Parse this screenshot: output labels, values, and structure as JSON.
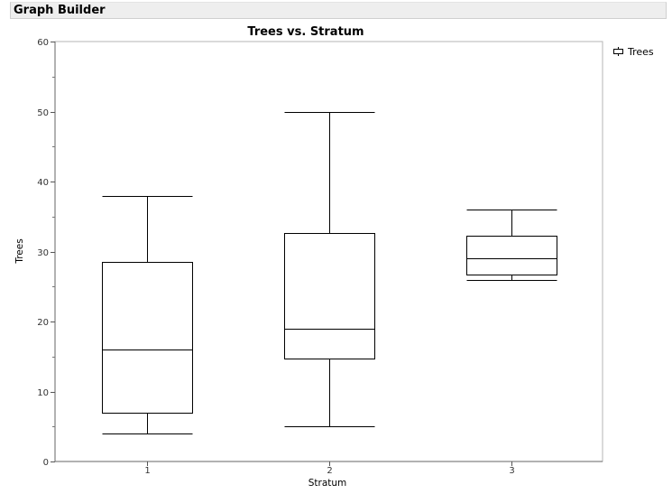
{
  "window": {
    "title": "Graph Builder"
  },
  "chart_data": {
    "type": "boxplot",
    "title": "Trees vs. Stratum",
    "xlabel": "Stratum",
    "ylabel": "Trees",
    "ylim": [
      0,
      60
    ],
    "yticks": [
      0,
      10,
      20,
      30,
      40,
      50,
      60
    ],
    "categories": [
      "1",
      "2",
      "3"
    ],
    "legend": {
      "position": "right",
      "entries": [
        "Trees"
      ]
    },
    "grid": false,
    "series": [
      {
        "name": "Trees",
        "boxes": [
          {
            "category": "1",
            "min": 4,
            "q1": 7,
            "median": 16,
            "q3": 28.5,
            "max": 38
          },
          {
            "category": "2",
            "min": 5,
            "q1": 14.7,
            "median": 19,
            "q3": 32.7,
            "max": 50
          },
          {
            "category": "3",
            "min": 26,
            "q1": 26.7,
            "median": 29,
            "q3": 32.2,
            "max": 36
          }
        ]
      }
    ]
  }
}
